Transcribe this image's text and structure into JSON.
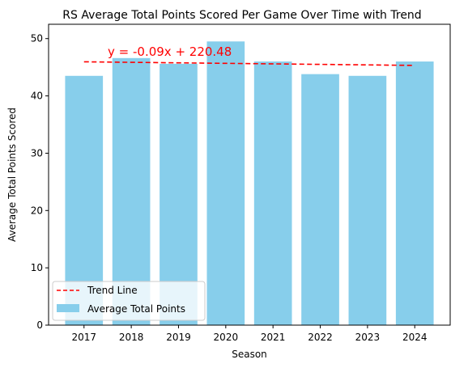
{
  "chart_data": {
    "type": "bar",
    "title": "RS Average Total Points Scored Per Game Over Time with Trend",
    "xlabel": "Season",
    "ylabel": "Average Total Points Scored",
    "ylim": [
      0,
      52.5
    ],
    "yticks": [
      0,
      10,
      20,
      30,
      40,
      50
    ],
    "grid": false,
    "categories": [
      "2017",
      "2018",
      "2019",
      "2020",
      "2021",
      "2022",
      "2023",
      "2024"
    ],
    "series": [
      {
        "name": "Average Total Points",
        "values": [
          43.5,
          46.6,
          45.6,
          49.5,
          46.0,
          43.8,
          43.5,
          46.0
        ]
      }
    ],
    "trend": {
      "name": "Trend Line",
      "slope": -0.09,
      "intercept": 220.48,
      "equation": "y = -0.09x + 220.48",
      "start_value": 45.95,
      "end_value": 45.32
    },
    "legend_position": "lower-left",
    "colors": {
      "bar": "#87ceeb",
      "trend": "#ff0000",
      "equation": "#ff0000"
    }
  }
}
